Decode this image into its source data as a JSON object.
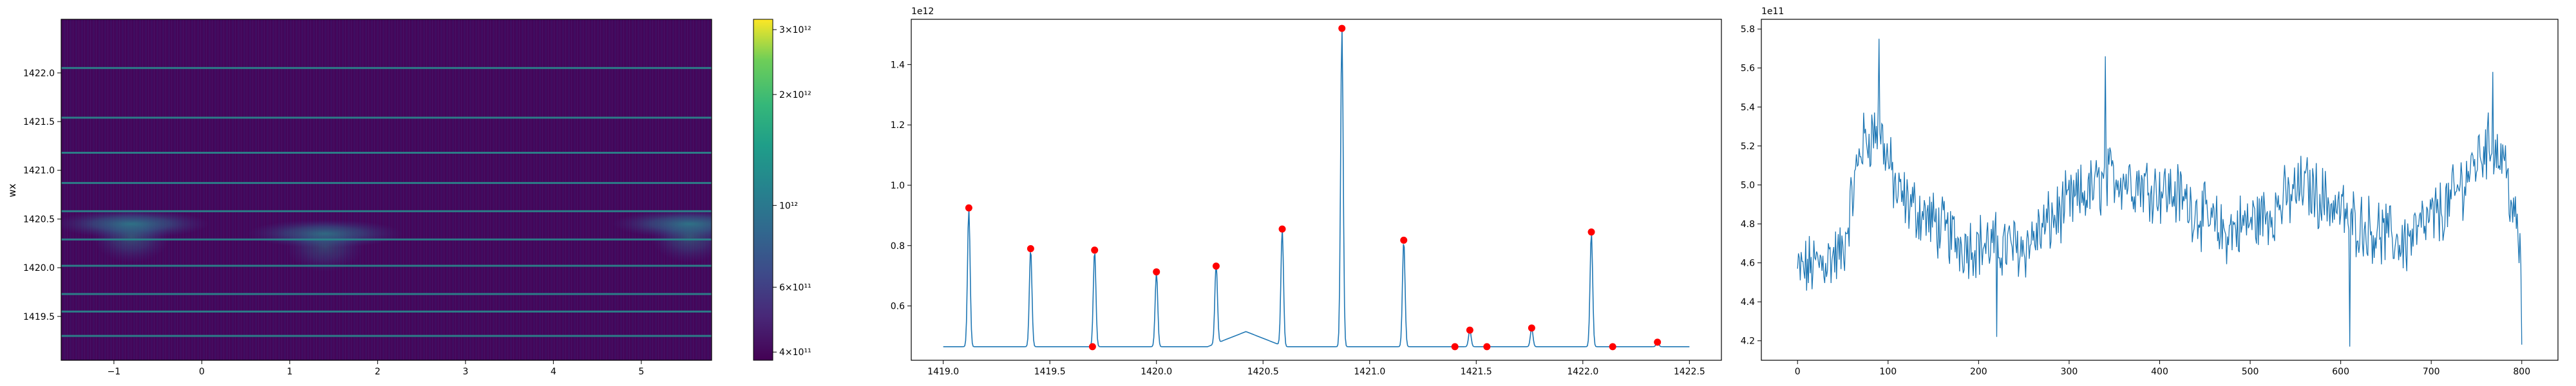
{
  "chart_data": [
    {
      "type": "heatmap",
      "ylabel": "wx",
      "xlim": [
        -1.6,
        5.8
      ],
      "ylim": [
        1419.05,
        1422.55
      ],
      "x_ticks": [
        -1,
        0,
        1,
        2,
        3,
        4,
        5
      ],
      "y_ticks": [
        1419.5,
        1420.0,
        1420.5,
        1421.0,
        1421.5,
        1422.0
      ],
      "x_tick_labels": [
        "−1",
        "0",
        "1",
        "2",
        "3",
        "4",
        "5"
      ],
      "y_tick_labels": [
        "1419.5",
        "1420.0",
        "1420.5",
        "1421.0",
        "1421.5",
        "1422.0"
      ],
      "colormap": "viridis",
      "horizontal_lines_wx": [
        1419.3,
        1419.55,
        1419.73,
        1420.02,
        1420.29,
        1420.58,
        1420.87,
        1421.18,
        1421.54,
        1422.05
      ],
      "blobs": [
        {
          "x": -0.8,
          "wx": 1420.45,
          "strength": 0.55
        },
        {
          "x": 1.4,
          "wx": 1420.35,
          "strength": 0.45
        },
        {
          "x": 5.55,
          "wx": 1420.45,
          "strength": 0.55
        }
      ],
      "colorbar": {
        "scale": "log",
        "range": [
          380000000000.0,
          3200000000000.0
        ],
        "tick_values": [
          400000000000.0,
          600000000000.0,
          1000000000000.0,
          2000000000000.0,
          3000000000000.0
        ],
        "tick_labels": [
          "4×10¹¹",
          "6×10¹¹",
          "10¹²",
          "2×10¹²",
          "3×10¹²"
        ]
      }
    },
    {
      "type": "line",
      "offset_label": "1e12",
      "xlim": [
        1418.85,
        1422.65
      ],
      "ylim": [
        0.42,
        1.55
      ],
      "x_ticks": [
        1419.0,
        1419.5,
        1420.0,
        1420.5,
        1421.0,
        1421.5,
        1422.0,
        1422.5
      ],
      "x_tick_labels": [
        "1419.0",
        "1419.5",
        "1420.0",
        "1420.5",
        "1421.0",
        "1421.5",
        "1422.0",
        "1422.5"
      ],
      "y_ticks": [
        0.6,
        0.8,
        1.0,
        1.2,
        1.4
      ],
      "y_tick_labels": [
        "0.6",
        "0.8",
        "1.0",
        "1.2",
        "1.4"
      ],
      "baseline": 0.465,
      "x_start": 1419.0,
      "x_end": 1422.5,
      "peaks": [
        {
          "x": 1419.12,
          "y": 0.925
        },
        {
          "x": 1419.41,
          "y": 0.79
        },
        {
          "x": 1419.71,
          "y": 0.785
        },
        {
          "x": 1420.0,
          "y": 0.713
        },
        {
          "x": 1420.28,
          "y": 0.732
        },
        {
          "x": 1420.59,
          "y": 0.855
        },
        {
          "x": 1420.87,
          "y": 1.52
        },
        {
          "x": 1421.16,
          "y": 0.818
        },
        {
          "x": 1421.47,
          "y": 0.52
        },
        {
          "x": 1421.76,
          "y": 0.527
        },
        {
          "x": 1422.04,
          "y": 0.845
        },
        {
          "x": 1422.35,
          "y": 0.48
        }
      ],
      "bump": {
        "center": 1420.42,
        "height": 0.05,
        "width": 0.18
      },
      "markers": [
        {
          "x": 1419.12,
          "y": 0.925
        },
        {
          "x": 1419.41,
          "y": 0.79
        },
        {
          "x": 1419.7,
          "y": 0.465
        },
        {
          "x": 1419.71,
          "y": 0.785
        },
        {
          "x": 1420.0,
          "y": 0.713
        },
        {
          "x": 1420.28,
          "y": 0.732
        },
        {
          "x": 1420.59,
          "y": 0.855
        },
        {
          "x": 1420.87,
          "y": 1.52
        },
        {
          "x": 1421.16,
          "y": 0.818
        },
        {
          "x": 1421.4,
          "y": 0.465
        },
        {
          "x": 1421.47,
          "y": 0.52
        },
        {
          "x": 1421.55,
          "y": 0.465
        },
        {
          "x": 1421.76,
          "y": 0.527
        },
        {
          "x": 1422.04,
          "y": 0.845
        },
        {
          "x": 1422.14,
          "y": 0.465
        },
        {
          "x": 1422.35,
          "y": 0.48
        }
      ],
      "line_color": "#1f77b4",
      "marker_color": "#ff0000"
    },
    {
      "type": "line",
      "offset_label": "1e11",
      "xlim": [
        -40,
        840
      ],
      "ylim": [
        4.1,
        5.85
      ],
      "x_ticks": [
        0,
        100,
        200,
        300,
        400,
        500,
        600,
        700,
        800
      ],
      "x_tick_labels": [
        "0",
        "100",
        "200",
        "300",
        "400",
        "500",
        "600",
        "700",
        "800"
      ],
      "y_ticks": [
        4.2,
        4.4,
        4.6,
        4.8,
        5.0,
        5.2,
        5.4,
        5.6,
        5.8
      ],
      "y_tick_labels": [
        "4.2",
        "4.4",
        "4.6",
        "4.8",
        "5.0",
        "5.2",
        "5.4",
        "5.6",
        "5.8"
      ],
      "n_points": 800,
      "trend_knots": [
        [
          0,
          4.55
        ],
        [
          50,
          4.65
        ],
        [
          70,
          5.2
        ],
        [
          90,
          5.3
        ],
        [
          110,
          4.95
        ],
        [
          180,
          4.7
        ],
        [
          250,
          4.68
        ],
        [
          300,
          4.9
        ],
        [
          350,
          5.05
        ],
        [
          420,
          4.95
        ],
        [
          470,
          4.75
        ],
        [
          520,
          4.85
        ],
        [
          560,
          5.0
        ],
        [
          620,
          4.8
        ],
        [
          670,
          4.7
        ],
        [
          720,
          4.9
        ],
        [
          760,
          5.2
        ],
        [
          780,
          5.15
        ],
        [
          800,
          4.6
        ]
      ],
      "noise_amplitude": 0.14,
      "spikes": [
        [
          90,
          5.75
        ],
        [
          220,
          4.22
        ],
        [
          340,
          5.66
        ],
        [
          610,
          4.17
        ],
        [
          768,
          5.58
        ],
        [
          800,
          4.18
        ]
      ],
      "line_color": "#1f77b4"
    }
  ]
}
